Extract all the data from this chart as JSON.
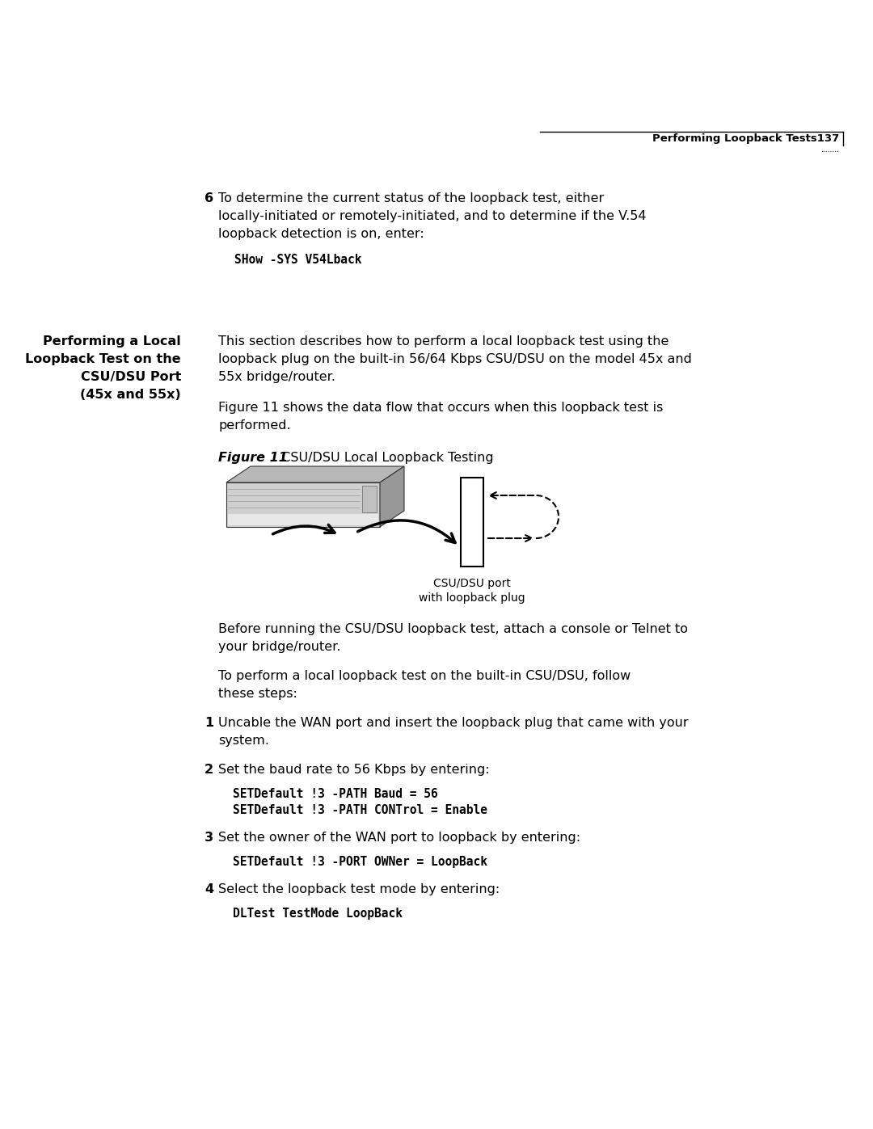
{
  "bg_color": "#ffffff",
  "header_text": "Performing Loopback Tests137",
  "header_dots": "........",
  "step6_num": "6",
  "step6_text_line1": "To determine the current status of the loopback test, either",
  "step6_text_line2": "locally-initiated or remotely-initiated, and to determine if the V.54",
  "step6_text_line3": "loopback detection is on, enter:",
  "step6_code": "SHow -SYS V54Lback",
  "sidebar_line1": "Performing a Local",
  "sidebar_line2": "Loopback Test on the",
  "sidebar_line3": "CSU/DSU Port",
  "sidebar_line4": "(45x and 55x)",
  "section_p1_line1": "This section describes how to perform a local loopback test using the",
  "section_p1_line2": "loopback plug on the built-in 56/64 Kbps CSU/DSU on the model 45x and",
  "section_p1_line3": "55x bridge/router.",
  "section_p2_line1": "Figure 11 shows the data flow that occurs when this loopback test is",
  "section_p2_line2": "performed.",
  "fig_label_bold": "Figure 11",
  "fig_label_rest": "  CSU/DSU Local Loopback Testing",
  "fig_caption_line1": "CSU/DSU port",
  "fig_caption_line2": "with loopback plug",
  "before_p1_line1": "Before running the CSU/DSU loopback test, attach a console or Telnet to",
  "before_p1_line2": "your bridge/router.",
  "before_p2_line1": "To perform a local loopback test on the built-in CSU/DSU, follow",
  "before_p2_line2": "these steps:",
  "step1_num": "1",
  "step1_line1": "Uncable the WAN port and insert the loopback plug that came with your",
  "step1_line2": "system.",
  "step2_num": "2",
  "step2_line1": "Set the baud rate to 56 Kbps by entering:",
  "step2_code1": "SETDefault !3 -PATH Baud = 56",
  "step2_code2": "SETDefault !3 -PATH CONTrol = Enable",
  "step3_num": "3",
  "step3_line1": "Set the owner of the WAN port to loopback by entering:",
  "step3_code": "SETDefault !3 -PORT OWNer = LoopBack",
  "step4_num": "4",
  "step4_line1": "Select the loopback test mode by entering:",
  "step4_code": "DLTest TestMode LoopBack"
}
